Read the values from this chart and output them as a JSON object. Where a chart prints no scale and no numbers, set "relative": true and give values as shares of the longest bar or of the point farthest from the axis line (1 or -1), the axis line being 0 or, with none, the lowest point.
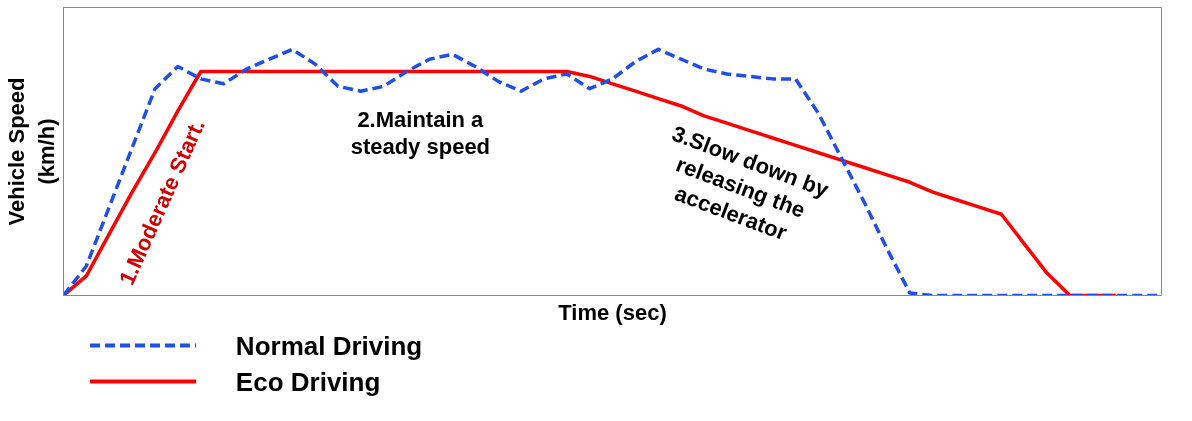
{
  "chart_data": {
    "type": "line",
    "relative": true,
    "xlabel": "Time (sec)",
    "ylabel": "Vehicle Speed\n(km/h)",
    "categories": [
      null,
      null,
      null,
      null,
      null,
      null,
      null,
      null,
      null,
      null,
      null,
      null,
      null,
      null,
      null,
      null,
      null,
      null,
      null,
      null,
      null,
      null,
      null,
      null,
      null,
      null,
      null,
      null,
      null,
      null,
      null,
      null,
      null,
      null,
      null,
      null,
      null,
      null,
      null,
      null,
      null,
      null,
      null,
      null,
      null,
      null,
      null,
      null,
      null
    ],
    "series": [
      {
        "name": "Normal Driving",
        "color": "#1f4fe6",
        "line_style": "dashed",
        "values": [
          0,
          0.12,
          0.36,
          0.6,
          0.84,
          0.93,
          0.88,
          0.86,
          0.92,
          0.96,
          1,
          0.94,
          0.85,
          0.83,
          0.85,
          0.91,
          0.96,
          0.98,
          0.93,
          0.87,
          0.83,
          0.88,
          0.9,
          0.84,
          0.88,
          0.95,
          1,
          0.96,
          0.92,
          0.9,
          0.89,
          0.88,
          0.88,
          0.74,
          0.56,
          0.38,
          0.19,
          0.01,
          0,
          0,
          0,
          0,
          0,
          0,
          0,
          0,
          0,
          0,
          0
        ]
      },
      {
        "name": "Eco Driving",
        "color": "#ff0000",
        "line_style": "solid",
        "values": [
          0,
          0.08,
          0.25,
          0.42,
          0.58,
          0.75,
          0.91,
          0.91,
          0.91,
          0.91,
          0.91,
          0.91,
          0.91,
          0.91,
          0.91,
          0.91,
          0.91,
          0.91,
          0.91,
          0.91,
          0.91,
          0.91,
          0.91,
          0.89,
          0.86,
          0.83,
          0.8,
          0.77,
          0.73,
          0.7,
          0.67,
          0.64,
          0.61,
          0.58,
          0.55,
          0.52,
          0.49,
          0.46,
          0.42,
          0.39,
          0.36,
          0.33,
          0.21,
          0.09,
          0,
          0,
          0,
          null,
          null
        ]
      }
    ],
    "annotations": [
      "1.Moderate Start.",
      "2.Maintain a\nsteady speed",
      "3.Slow down by\nreleasing the\naccelerator"
    ],
    "legend": "bottom",
    "marker": "none"
  }
}
